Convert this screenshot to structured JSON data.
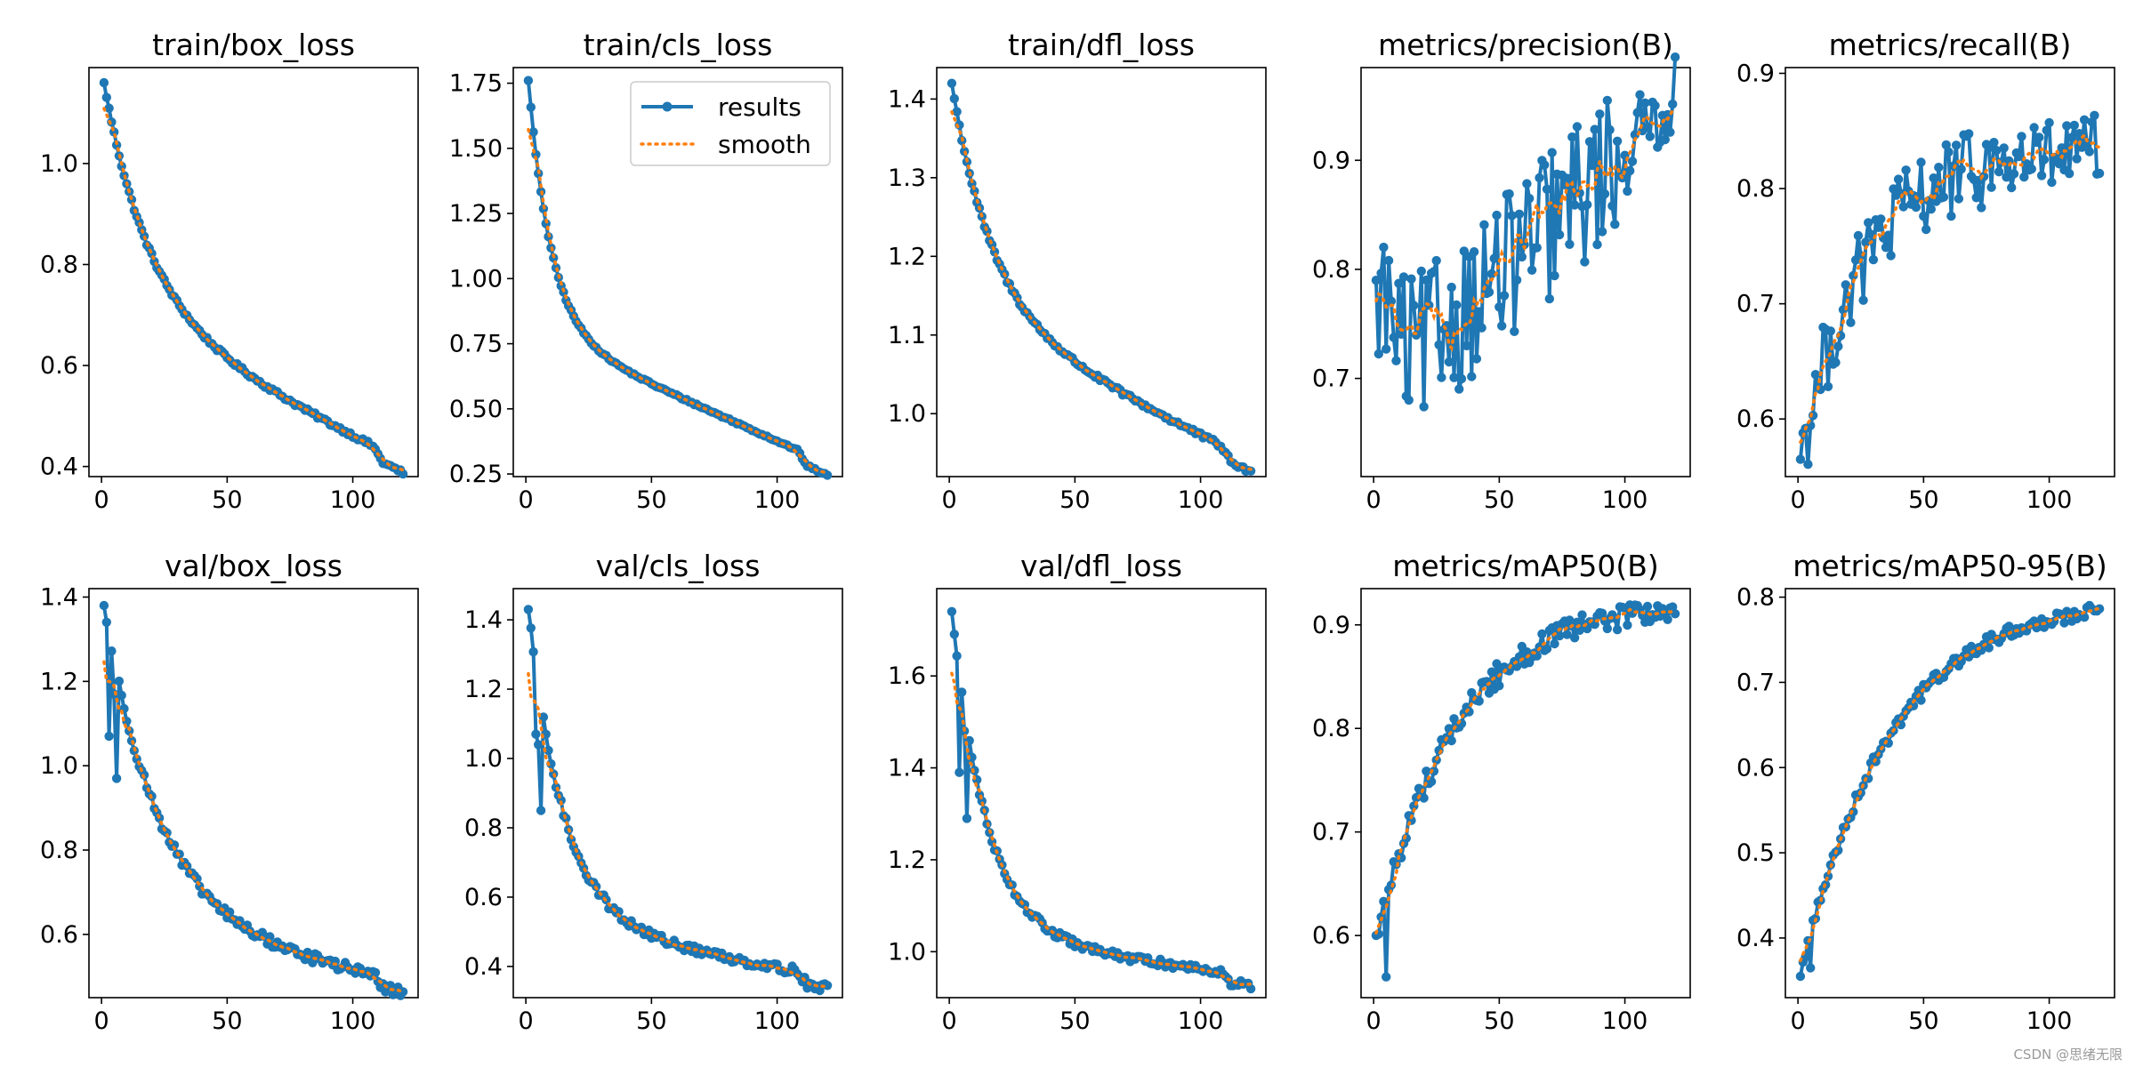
{
  "colors": {
    "results": "#1f77b4",
    "smooth": "#ff7f0e",
    "axes": "#000000",
    "background": "#ffffff"
  },
  "legend": {
    "results_label": "results",
    "smooth_label": "smooth",
    "placement": "upper right of train/cls_loss"
  },
  "watermark": "CSDN @思绪无限",
  "chart_data": [
    {
      "type": "line",
      "title": "train/box_loss",
      "xlim": [
        -5,
        126
      ],
      "ylim": [
        0.38,
        1.19
      ],
      "xticks": [
        0,
        50,
        100
      ],
      "yticks": [
        0.4,
        0.6,
        0.8,
        1.0
      ],
      "ytick_labels": [
        "0.4",
        "0.6",
        "0.8",
        "1.0"
      ],
      "x_count": 120,
      "start": 1.16,
      "end": 0.41,
      "shape": "exp_decay",
      "tau": 18,
      "lin_weight": 0.4,
      "noise": 0.004,
      "spikes": [],
      "series": [
        {
          "name": "results"
        },
        {
          "name": "smooth"
        }
      ]
    },
    {
      "type": "line",
      "title": "train/cls_loss",
      "xlim": [
        -5,
        126
      ],
      "ylim": [
        0.24,
        1.81
      ],
      "xticks": [
        0,
        50,
        100
      ],
      "yticks": [
        0.25,
        0.5,
        0.75,
        1.0,
        1.25,
        1.5,
        1.75
      ],
      "ytick_labels": [
        "0.25",
        "0.50",
        "0.75",
        "1.00",
        "1.25",
        "1.50",
        "1.75"
      ],
      "x_count": 120,
      "start": 1.76,
      "end": 0.29,
      "shape": "fast_decay",
      "tau": 9,
      "lin_weight": 0.35,
      "noise": 0.004,
      "spikes": [],
      "series": [
        {
          "name": "results"
        },
        {
          "name": "smooth"
        }
      ]
    },
    {
      "type": "line",
      "title": "train/dfl_loss",
      "xlim": [
        -5,
        126
      ],
      "ylim": [
        0.92,
        1.44
      ],
      "xticks": [
        0,
        50,
        100
      ],
      "yticks": [
        1.0,
        1.1,
        1.2,
        1.3,
        1.4
      ],
      "ytick_labels": [
        "1.0",
        "1.1",
        "1.2",
        "1.3",
        "1.4"
      ],
      "x_count": 120,
      "start": 1.42,
      "end": 0.94,
      "shape": "exp_decay",
      "tau": 16,
      "lin_weight": 0.4,
      "noise": 0.003,
      "spikes": [],
      "series": [
        {
          "name": "results"
        },
        {
          "name": "smooth"
        }
      ]
    },
    {
      "type": "line",
      "title": "metrics/precision(B)",
      "xlim": [
        -5,
        126
      ],
      "ylim": [
        0.61,
        0.985
      ],
      "xticks": [
        0,
        50,
        100
      ],
      "yticks": [
        0.7,
        0.8,
        0.9
      ],
      "ytick_labels": [
        "0.7",
        "0.8",
        "0.9"
      ],
      "x_count": 120,
      "start": 0.79,
      "end": 0.96,
      "shape": "dip_rise",
      "tau": 0,
      "lin_weight": 0,
      "noise": 0.07,
      "spikes": [],
      "series": [
        {
          "name": "results"
        },
        {
          "name": "smooth"
        }
      ]
    },
    {
      "type": "line",
      "title": "metrics/recall(B)",
      "xlim": [
        -5,
        126
      ],
      "ylim": [
        0.55,
        0.905
      ],
      "xticks": [
        0,
        50,
        100
      ],
      "yticks": [
        0.6,
        0.7,
        0.8,
        0.9
      ],
      "ytick_labels": [
        "0.6",
        "0.7",
        "0.8",
        "0.9"
      ],
      "x_count": 120,
      "start": 0.565,
      "end": 0.83,
      "shape": "saturating_rise",
      "tau": 25,
      "lin_weight": 0,
      "noise": 0.035,
      "spikes": [],
      "series": [
        {
          "name": "results"
        },
        {
          "name": "smooth"
        }
      ]
    },
    {
      "type": "line",
      "title": "val/box_loss",
      "xlim": [
        -5,
        126
      ],
      "ylim": [
        0.45,
        1.42
      ],
      "xticks": [
        0,
        50,
        100
      ],
      "yticks": [
        0.6,
        0.8,
        1.0,
        1.2,
        1.4
      ],
      "ytick_labels": [
        "0.6",
        "0.8",
        "1.0",
        "1.2",
        "1.4"
      ],
      "x_count": 120,
      "start": 1.38,
      "end": 0.49,
      "shape": "fast_decay",
      "tau": 22,
      "lin_weight": 0.15,
      "noise": 0.012,
      "spikes": [
        [
          2,
          1.07
        ],
        [
          4,
          1.17
        ],
        [
          5,
          0.97
        ]
      ],
      "series": [
        {
          "name": "results"
        },
        {
          "name": "smooth"
        }
      ]
    },
    {
      "type": "line",
      "title": "val/cls_loss",
      "xlim": [
        -5,
        126
      ],
      "ylim": [
        0.31,
        1.49
      ],
      "xticks": [
        0,
        50,
        100
      ],
      "yticks": [
        0.4,
        0.6,
        0.8,
        1.0,
        1.2,
        1.4
      ],
      "ytick_labels": [
        "0.4",
        "0.6",
        "0.8",
        "1.0",
        "1.2",
        "1.4"
      ],
      "x_count": 120,
      "start": 1.43,
      "end": 0.37,
      "shape": "fast_decay",
      "tau": 14,
      "lin_weight": 0.15,
      "noise": 0.012,
      "spikes": [
        [
          3,
          1.07
        ],
        [
          4,
          1.04
        ],
        [
          5,
          0.85
        ]
      ],
      "series": [
        {
          "name": "results"
        },
        {
          "name": "smooth"
        }
      ]
    },
    {
      "type": "line",
      "title": "val/dfl_loss",
      "xlim": [
        -5,
        126
      ],
      "ylim": [
        0.9,
        1.79
      ],
      "xticks": [
        0,
        50,
        100
      ],
      "yticks": [
        1.0,
        1.2,
        1.4,
        1.6
      ],
      "ytick_labels": [
        "1.0",
        "1.2",
        "1.4",
        "1.6"
      ],
      "x_count": 120,
      "start": 1.74,
      "end": 0.95,
      "shape": "fast_decay",
      "tau": 14,
      "lin_weight": 0.1,
      "noise": 0.008,
      "spikes": [
        [
          3,
          1.39
        ],
        [
          5,
          1.48
        ],
        [
          6,
          1.29
        ]
      ],
      "series": [
        {
          "name": "results"
        },
        {
          "name": "smooth"
        }
      ]
    },
    {
      "type": "line",
      "title": "metrics/mAP50(B)",
      "xlim": [
        -5,
        126
      ],
      "ylim": [
        0.54,
        0.935
      ],
      "xticks": [
        0,
        50,
        100
      ],
      "yticks": [
        0.6,
        0.7,
        0.8,
        0.9
      ],
      "ytick_labels": [
        "0.6",
        "0.7",
        "0.8",
        "0.9"
      ],
      "x_count": 120,
      "start": 0.6,
      "end": 0.915,
      "shape": "saturating_rise",
      "tau": 32,
      "lin_weight": 0,
      "noise": 0.012,
      "spikes": [
        [
          4,
          0.56
        ]
      ],
      "series": [
        {
          "name": "results"
        },
        {
          "name": "smooth"
        }
      ]
    },
    {
      "type": "line",
      "title": "metrics/mAP50-95(B)",
      "xlim": [
        -5,
        126
      ],
      "ylim": [
        0.33,
        0.81
      ],
      "xticks": [
        0,
        50,
        100
      ],
      "yticks": [
        0.4,
        0.5,
        0.6,
        0.7,
        0.8
      ],
      "ytick_labels": [
        "0.4",
        "0.5",
        "0.6",
        "0.7",
        "0.8"
      ],
      "x_count": 120,
      "start": 0.355,
      "end": 0.785,
      "shape": "saturating_rise",
      "tau": 35,
      "lin_weight": 0,
      "noise": 0.008,
      "spikes": [
        [
          4,
          0.365
        ]
      ],
      "series": [
        {
          "name": "results"
        },
        {
          "name": "smooth"
        }
      ]
    }
  ]
}
